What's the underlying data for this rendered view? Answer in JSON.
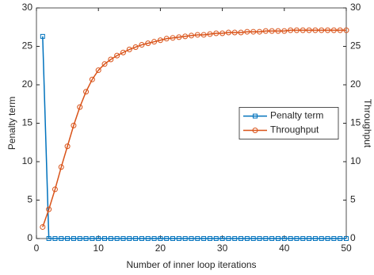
{
  "chart_data": {
    "type": "line",
    "x_label": "Number of inner loop iterations",
    "y_label": "Penalty term",
    "y2_label": "Throughput",
    "x": [
      1,
      2,
      3,
      4,
      5,
      6,
      7,
      8,
      9,
      10,
      11,
      12,
      13,
      14,
      15,
      16,
      17,
      18,
      19,
      20,
      21,
      22,
      23,
      24,
      25,
      26,
      27,
      28,
      29,
      30,
      31,
      32,
      33,
      34,
      35,
      36,
      37,
      38,
      39,
      40,
      41,
      42,
      43,
      44,
      45,
      46,
      47,
      48,
      49,
      50
    ],
    "series": [
      {
        "name": "Penalty term",
        "color": "#0072bd",
        "marker": "square",
        "values": [
          26.3,
          0,
          0,
          0,
          0,
          0,
          0,
          0,
          0,
          0,
          0,
          0,
          0,
          0,
          0,
          0,
          0,
          0,
          0,
          0,
          0,
          0,
          0,
          0,
          0,
          0,
          0,
          0,
          0,
          0,
          0,
          0,
          0,
          0,
          0,
          0,
          0,
          0,
          0,
          0,
          0,
          0,
          0,
          0,
          0,
          0,
          0,
          0,
          0,
          0
        ]
      },
      {
        "name": "Throughput",
        "color": "#d95319",
        "marker": "circle",
        "axis": "y2",
        "values": [
          1.5,
          3.8,
          6.4,
          9.3,
          12.0,
          14.7,
          17.1,
          19.1,
          20.7,
          21.9,
          22.7,
          23.3,
          23.8,
          24.2,
          24.6,
          24.9,
          25.2,
          25.4,
          25.6,
          25.8,
          26.0,
          26.1,
          26.2,
          26.3,
          26.4,
          26.5,
          26.5,
          26.6,
          26.7,
          26.7,
          26.8,
          26.8,
          26.8,
          26.9,
          26.9,
          26.9,
          27.0,
          27.0,
          27.0,
          27.0,
          27.1,
          27.1,
          27.1,
          27.1,
          27.1,
          27.1,
          27.1,
          27.1,
          27.1,
          27.1
        ]
      }
    ],
    "xlim": [
      0,
      50
    ],
    "xticks": [
      0,
      10,
      20,
      30,
      40,
      50
    ],
    "ylim": [
      0,
      30
    ],
    "yticks": [
      0,
      5,
      10,
      15,
      20,
      25,
      30
    ],
    "y2lim": [
      0,
      30
    ],
    "y2ticks": [
      0,
      5,
      10,
      15,
      20,
      25,
      30
    ],
    "legend_position": "east"
  }
}
